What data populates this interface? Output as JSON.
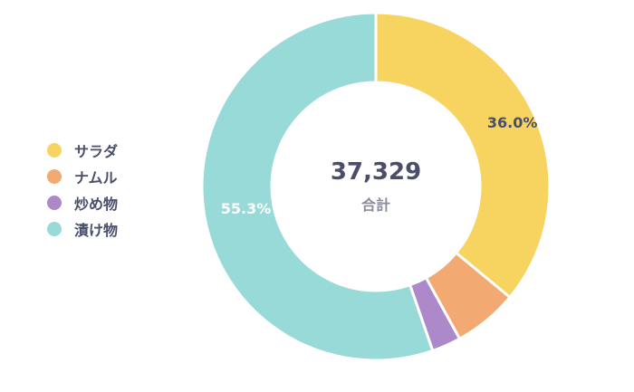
{
  "chart_data": {
    "type": "pie",
    "variant": "donut",
    "categories": [
      "サラダ",
      "ナムル",
      "炒め物",
      "漬け物"
    ],
    "values": [
      36.0,
      6.0,
      2.7,
      55.3
    ],
    "colors": [
      "#F7D360",
      "#F2AA72",
      "#AD89C9",
      "#98DAD8"
    ],
    "data_labels": [
      "36.0%",
      "",
      "",
      "55.3%"
    ],
    "center_value": "37,329",
    "center_label": "合計",
    "legend_position": "left"
  }
}
